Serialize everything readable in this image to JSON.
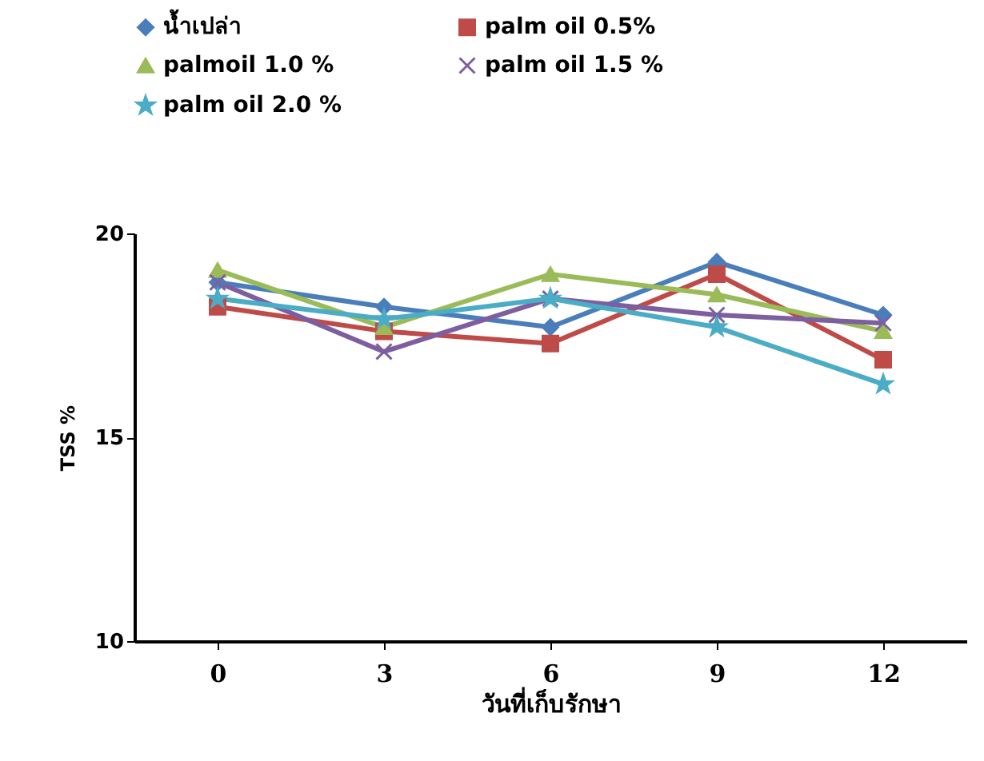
{
  "chart_data": {
    "type": "line",
    "xlabel": "วันที่เก็บรักษา",
    "ylabel": "TSS %",
    "categories": [
      "0",
      "3",
      "6",
      "9",
      "12"
    ],
    "ylim": [
      10,
      20
    ],
    "yticks": [
      10,
      15,
      20
    ],
    "grid": false,
    "legend": "top",
    "line_style": "solid",
    "series": [
      {
        "name": "น้ำเปล่า",
        "color": "#4a7ebb",
        "marker": "diamond",
        "values": [
          18.8,
          18.2,
          17.7,
          19.3,
          18.0
        ]
      },
      {
        "name": "palm  oil  0.5%",
        "color": "#be4b48",
        "marker": "square",
        "values": [
          18.2,
          17.6,
          17.3,
          19.0,
          16.9
        ]
      },
      {
        "name": "palmoil    1.0 %",
        "color": "#9bbb59",
        "marker": "triangle",
        "values": [
          19.1,
          17.7,
          19.0,
          18.5,
          17.6
        ]
      },
      {
        "name": "palm  oil   1.5 %",
        "color": "#7d5fa0",
        "marker": "cross",
        "values": [
          18.8,
          17.1,
          18.4,
          18.0,
          17.8
        ]
      },
      {
        "name": "palm  oil  2.0 %",
        "color": "#4bacc6",
        "marker": "star",
        "values": [
          18.4,
          17.9,
          18.4,
          17.7,
          16.3
        ]
      }
    ]
  }
}
